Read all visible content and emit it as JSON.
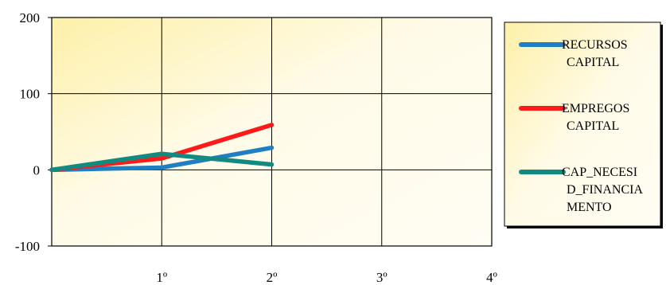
{
  "chart_data": {
    "type": "line",
    "x": [
      0,
      1,
      2
    ],
    "categories": [
      "1º",
      "2º",
      "3º",
      "4º"
    ],
    "ylim": [
      -100,
      200
    ],
    "yticks": [
      200,
      100,
      0,
      -100
    ],
    "xlim": [
      0,
      4
    ],
    "grid": true,
    "legend_position": "right",
    "series": [
      {
        "name": "RECURSOS CAPITAL",
        "values": [
          0,
          3,
          29
        ],
        "color": "#1f7fc4"
      },
      {
        "name": "EMPREGOS CAPITAL",
        "values": [
          0,
          15,
          59
        ],
        "color": "#ff1a1a"
      },
      {
        "name": "CAP_NECESID_FINANCIAMENTO",
        "values": [
          0,
          21,
          7
        ],
        "color": "#138a80"
      }
    ],
    "legend_lines": [
      [
        "RECURSOS",
        "CAPITAL"
      ],
      [
        "EMPREGOS",
        "CAPITAL"
      ],
      [
        "CAP_NECESI",
        "D_FINANCIA",
        "MENTO"
      ]
    ]
  }
}
